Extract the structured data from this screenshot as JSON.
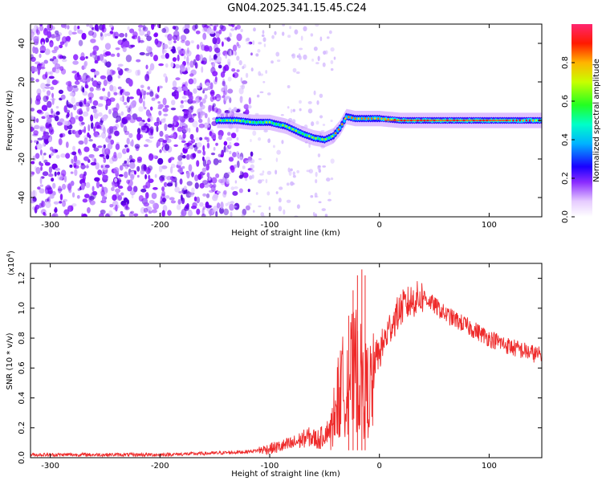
{
  "figure_title": "GN04.2025.341.15.45.C24",
  "colors": {
    "purple": "#7c00ff",
    "snr_line": "#ee2a2a",
    "frame": "#000000"
  },
  "chart_data": [
    {
      "type": "heatmap",
      "title": "GN04.2025.341.15.45.C24",
      "xlabel": "Height of straight line (km)",
      "ylabel": "Frequency (Hz)",
      "xlim": [
        -318,
        148
      ],
      "ylim": [
        -50,
        50
      ],
      "xticks": [
        -300,
        -200,
        -100,
        0,
        100
      ],
      "yticks": [
        -40,
        -20,
        0,
        20,
        40
      ],
      "xtick_labels": [
        "-300",
        "-200",
        "-100",
        "0",
        "100"
      ],
      "ytick_labels": [
        "-40",
        "-20",
        "0",
        "20",
        "40"
      ],
      "colorbar": {
        "label": "Normalized spectral amplitude",
        "range": [
          0,
          1
        ],
        "ticks": [
          0.0,
          0.2,
          0.4,
          0.6,
          0.8
        ],
        "tick_labels": [
          "0.0",
          "0.2",
          "0.4",
          "0.6",
          "0.8"
        ],
        "colors": [
          "#ffffff",
          "#d9b3ff",
          "#7c00ff",
          "#0000ff",
          "#00dfff",
          "#00ff55",
          "#ffff00",
          "#ff8800",
          "#ff0000",
          "#ff2266"
        ]
      },
      "ridge": {
        "x": [
          -148,
          -130,
          -115,
          -100,
          -85,
          -70,
          -60,
          -50,
          -42,
          -36,
          -30,
          -22,
          -10,
          0,
          20,
          60,
          100,
          148
        ],
        "y": [
          0,
          0,
          -1,
          -1,
          -3,
          -7,
          -9,
          -10,
          -8,
          -4,
          2,
          1,
          1,
          1,
          0,
          0,
          0,
          0
        ],
        "noise_region_x": [
          -318,
          -130
        ]
      }
    },
    {
      "type": "line",
      "title": "",
      "xlabel": "Height of straight line (km)",
      "ylabel": "SNR (10 * v/v)",
      "y_multiplier_label": "(x10",
      "y_multiplier_exp": "4",
      "y_multiplier_close": ")",
      "xlim": [
        -318,
        148
      ],
      "ylim": [
        0,
        1.3
      ],
      "xticks": [
        -300,
        -200,
        -100,
        0,
        100
      ],
      "yticks": [
        0.0,
        0.2,
        0.4,
        0.6,
        0.8,
        1.0,
        1.2
      ],
      "xtick_labels": [
        "-300",
        "-200",
        "-100",
        "0",
        "100"
      ],
      "ytick_labels": [
        "0.0",
        "0.2",
        "0.4",
        "0.6",
        "0.8",
        "1.0",
        "1.2"
      ],
      "series": [
        {
          "name": "SNR",
          "x": [
            -318,
            -250,
            -200,
            -150,
            -120,
            -100,
            -80,
            -65,
            -55,
            -45,
            -40,
            -35,
            -30,
            -25,
            -20,
            -15,
            -10,
            -5,
            0,
            10,
            20,
            30,
            40,
            45,
            60,
            80,
            100,
            120,
            148
          ],
          "y": [
            0.02,
            0.02,
            0.02,
            0.03,
            0.04,
            0.06,
            0.09,
            0.14,
            0.12,
            0.2,
            0.45,
            0.6,
            0.7,
            0.75,
            0.8,
            0.62,
            0.6,
            0.65,
            0.7,
            0.88,
            1.0,
            1.05,
            1.08,
            1.05,
            0.96,
            0.88,
            0.8,
            0.74,
            0.68
          ]
        }
      ],
      "peaks": {
        "x": [
          -28,
          -24,
          -20,
          -16,
          -13
        ],
        "y": [
          0.95,
          1.12,
          1.22,
          1.26,
          1.22
        ]
      }
    }
  ]
}
